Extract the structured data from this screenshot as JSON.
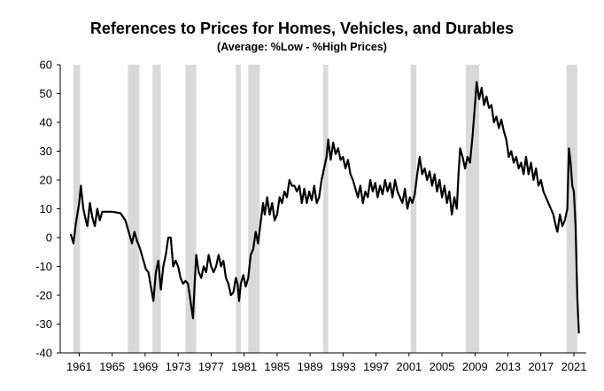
{
  "chart_data": {
    "type": "line",
    "title": "References to Prices for Homes, Vehicles, and Durables",
    "subtitle": "(Average:  %Low - %High Prices)",
    "xlabel": "",
    "ylabel": "",
    "xlim": [
      1958.7,
      2022.5
    ],
    "ylim": [
      -40,
      60
    ],
    "yticks": [
      60,
      50,
      40,
      30,
      20,
      10,
      0,
      -10,
      -20,
      -30,
      -40
    ],
    "xticks": [
      1961,
      1965,
      1969,
      1973,
      1977,
      1981,
      1985,
      1989,
      1993,
      1997,
      2001,
      2005,
      2009,
      2013,
      2017,
      2021
    ],
    "grid": false,
    "line_color": "#000000",
    "recession_color": "#d9d9d9",
    "recessions": [
      [
        1960.3,
        1961.1
      ],
      [
        1966.9,
        1968.3
      ],
      [
        1969.9,
        1970.9
      ],
      [
        1973.9,
        1975.2
      ],
      [
        1980.0,
        1980.6
      ],
      [
        1981.5,
        1982.9
      ],
      [
        1990.6,
        1991.2
      ],
      [
        2001.2,
        2001.9
      ],
      [
        2007.9,
        2009.5
      ],
      [
        2020.1,
        2021.4
      ]
    ],
    "series": [
      {
        "name": "Average %Low - %High Prices",
        "points": [
          [
            1960.0,
            1
          ],
          [
            1960.3,
            -2
          ],
          [
            1960.6,
            5
          ],
          [
            1961.0,
            12
          ],
          [
            1961.2,
            18
          ],
          [
            1961.5,
            10
          ],
          [
            1961.8,
            6
          ],
          [
            1962.0,
            4
          ],
          [
            1962.3,
            12
          ],
          [
            1962.6,
            7
          ],
          [
            1962.9,
            4
          ],
          [
            1963.2,
            10
          ],
          [
            1963.5,
            6
          ],
          [
            1963.8,
            9
          ],
          [
            1964.2,
            9
          ],
          [
            1965.0,
            9
          ],
          [
            1966.0,
            8.5
          ],
          [
            1966.6,
            6
          ],
          [
            1967.0,
            2
          ],
          [
            1967.4,
            -2
          ],
          [
            1967.7,
            2
          ],
          [
            1968.0,
            -1
          ],
          [
            1968.4,
            -4
          ],
          [
            1968.8,
            -8
          ],
          [
            1969.1,
            -11
          ],
          [
            1969.4,
            -12
          ],
          [
            1969.7,
            -17
          ],
          [
            1970.0,
            -22
          ],
          [
            1970.3,
            -12
          ],
          [
            1970.6,
            -8
          ],
          [
            1970.9,
            -18
          ],
          [
            1971.2,
            -10
          ],
          [
            1971.5,
            -6
          ],
          [
            1971.8,
            0
          ],
          [
            1972.1,
            0
          ],
          [
            1972.4,
            -10
          ],
          [
            1972.7,
            -8
          ],
          [
            1973.0,
            -10
          ],
          [
            1973.3,
            -14
          ],
          [
            1973.6,
            -16
          ],
          [
            1973.9,
            -15
          ],
          [
            1974.2,
            -16
          ],
          [
            1974.5,
            -22
          ],
          [
            1974.8,
            -28
          ],
          [
            1975.0,
            -16
          ],
          [
            1975.2,
            -6
          ],
          [
            1975.5,
            -12
          ],
          [
            1975.8,
            -14
          ],
          [
            1976.1,
            -10
          ],
          [
            1976.4,
            -12
          ],
          [
            1976.7,
            -6
          ],
          [
            1977.0,
            -10
          ],
          [
            1977.3,
            -12
          ],
          [
            1977.6,
            -10
          ],
          [
            1977.9,
            -6
          ],
          [
            1978.2,
            -10
          ],
          [
            1978.5,
            -8
          ],
          [
            1978.8,
            -14
          ],
          [
            1979.1,
            -16
          ],
          [
            1979.4,
            -20
          ],
          [
            1979.7,
            -19
          ],
          [
            1980.0,
            -14
          ],
          [
            1980.2,
            -16
          ],
          [
            1980.4,
            -22
          ],
          [
            1980.6,
            -16
          ],
          [
            1980.9,
            -13
          ],
          [
            1981.2,
            -17
          ],
          [
            1981.5,
            -14
          ],
          [
            1981.8,
            -6
          ],
          [
            1982.1,
            -4
          ],
          [
            1982.4,
            2
          ],
          [
            1982.7,
            -2
          ],
          [
            1983.0,
            5
          ],
          [
            1983.3,
            12
          ],
          [
            1983.5,
            8
          ],
          [
            1983.8,
            14
          ],
          [
            1984.1,
            8
          ],
          [
            1984.4,
            12
          ],
          [
            1984.7,
            6
          ],
          [
            1985.0,
            8
          ],
          [
            1985.3,
            14
          ],
          [
            1985.6,
            12
          ],
          [
            1985.9,
            16
          ],
          [
            1986.2,
            14
          ],
          [
            1986.5,
            20
          ],
          [
            1986.8,
            18
          ],
          [
            1987.1,
            18
          ],
          [
            1987.4,
            16
          ],
          [
            1987.7,
            18
          ],
          [
            1988.0,
            12
          ],
          [
            1988.3,
            17
          ],
          [
            1988.6,
            12
          ],
          [
            1988.9,
            16
          ],
          [
            1989.2,
            13
          ],
          [
            1989.5,
            18
          ],
          [
            1989.8,
            12
          ],
          [
            1990.1,
            14
          ],
          [
            1990.4,
            20
          ],
          [
            1990.7,
            24
          ],
          [
            1991.0,
            28
          ],
          [
            1991.2,
            34
          ],
          [
            1991.5,
            27
          ],
          [
            1991.8,
            33
          ],
          [
            1992.1,
            29
          ],
          [
            1992.4,
            31
          ],
          [
            1992.7,
            27
          ],
          [
            1993.0,
            28
          ],
          [
            1993.3,
            24
          ],
          [
            1993.6,
            27
          ],
          [
            1993.9,
            22
          ],
          [
            1994.2,
            20
          ],
          [
            1994.5,
            17
          ],
          [
            1994.8,
            14
          ],
          [
            1995.1,
            18
          ],
          [
            1995.4,
            12
          ],
          [
            1995.7,
            16
          ],
          [
            1996.0,
            14
          ],
          [
            1996.3,
            20
          ],
          [
            1996.6,
            16
          ],
          [
            1996.9,
            19
          ],
          [
            1997.2,
            14
          ],
          [
            1997.5,
            18
          ],
          [
            1997.8,
            15
          ],
          [
            1998.1,
            20
          ],
          [
            1998.4,
            16
          ],
          [
            1998.7,
            19
          ],
          [
            1999.0,
            14
          ],
          [
            1999.3,
            20
          ],
          [
            1999.6,
            16
          ],
          [
            1999.9,
            14
          ],
          [
            2000.2,
            12
          ],
          [
            2000.5,
            17
          ],
          [
            2000.8,
            10
          ],
          [
            2001.1,
            14
          ],
          [
            2001.4,
            12
          ],
          [
            2001.7,
            15
          ],
          [
            2002.0,
            22
          ],
          [
            2002.3,
            28
          ],
          [
            2002.6,
            22
          ],
          [
            2002.9,
            24
          ],
          [
            2003.2,
            20
          ],
          [
            2003.5,
            23
          ],
          [
            2003.8,
            18
          ],
          [
            2004.1,
            22
          ],
          [
            2004.4,
            16
          ],
          [
            2004.7,
            20
          ],
          [
            2005.0,
            14
          ],
          [
            2005.3,
            18
          ],
          [
            2005.6,
            12
          ],
          [
            2005.9,
            16
          ],
          [
            2006.2,
            8
          ],
          [
            2006.5,
            14
          ],
          [
            2006.8,
            10
          ],
          [
            2007.0,
            22
          ],
          [
            2007.2,
            31
          ],
          [
            2007.5,
            28
          ],
          [
            2007.8,
            24
          ],
          [
            2008.1,
            28
          ],
          [
            2008.4,
            26
          ],
          [
            2008.7,
            35
          ],
          [
            2009.0,
            46
          ],
          [
            2009.2,
            54
          ],
          [
            2009.5,
            48
          ],
          [
            2009.8,
            52
          ],
          [
            2010.1,
            46
          ],
          [
            2010.4,
            49
          ],
          [
            2010.7,
            45
          ],
          [
            2011.0,
            46
          ],
          [
            2011.3,
            40
          ],
          [
            2011.6,
            42
          ],
          [
            2011.9,
            38
          ],
          [
            2012.2,
            41
          ],
          [
            2012.5,
            37
          ],
          [
            2012.8,
            34
          ],
          [
            2013.1,
            28
          ],
          [
            2013.4,
            30
          ],
          [
            2013.7,
            26
          ],
          [
            2014.0,
            28
          ],
          [
            2014.3,
            24
          ],
          [
            2014.6,
            26
          ],
          [
            2014.9,
            22
          ],
          [
            2015.2,
            28
          ],
          [
            2015.5,
            22
          ],
          [
            2015.8,
            26
          ],
          [
            2016.1,
            20
          ],
          [
            2016.4,
            24
          ],
          [
            2016.7,
            18
          ],
          [
            2017.0,
            20
          ],
          [
            2017.3,
            16
          ],
          [
            2017.6,
            14
          ],
          [
            2017.9,
            12
          ],
          [
            2018.2,
            10
          ],
          [
            2018.5,
            8
          ],
          [
            2018.8,
            4
          ],
          [
            2019.0,
            2
          ],
          [
            2019.3,
            8
          ],
          [
            2019.6,
            4
          ],
          [
            2019.9,
            6
          ],
          [
            2020.2,
            10
          ],
          [
            2020.4,
            31
          ],
          [
            2020.6,
            26
          ],
          [
            2020.8,
            18
          ],
          [
            2021.0,
            16
          ],
          [
            2021.2,
            4
          ],
          [
            2021.4,
            -20
          ],
          [
            2021.6,
            -33
          ]
        ]
      }
    ]
  }
}
